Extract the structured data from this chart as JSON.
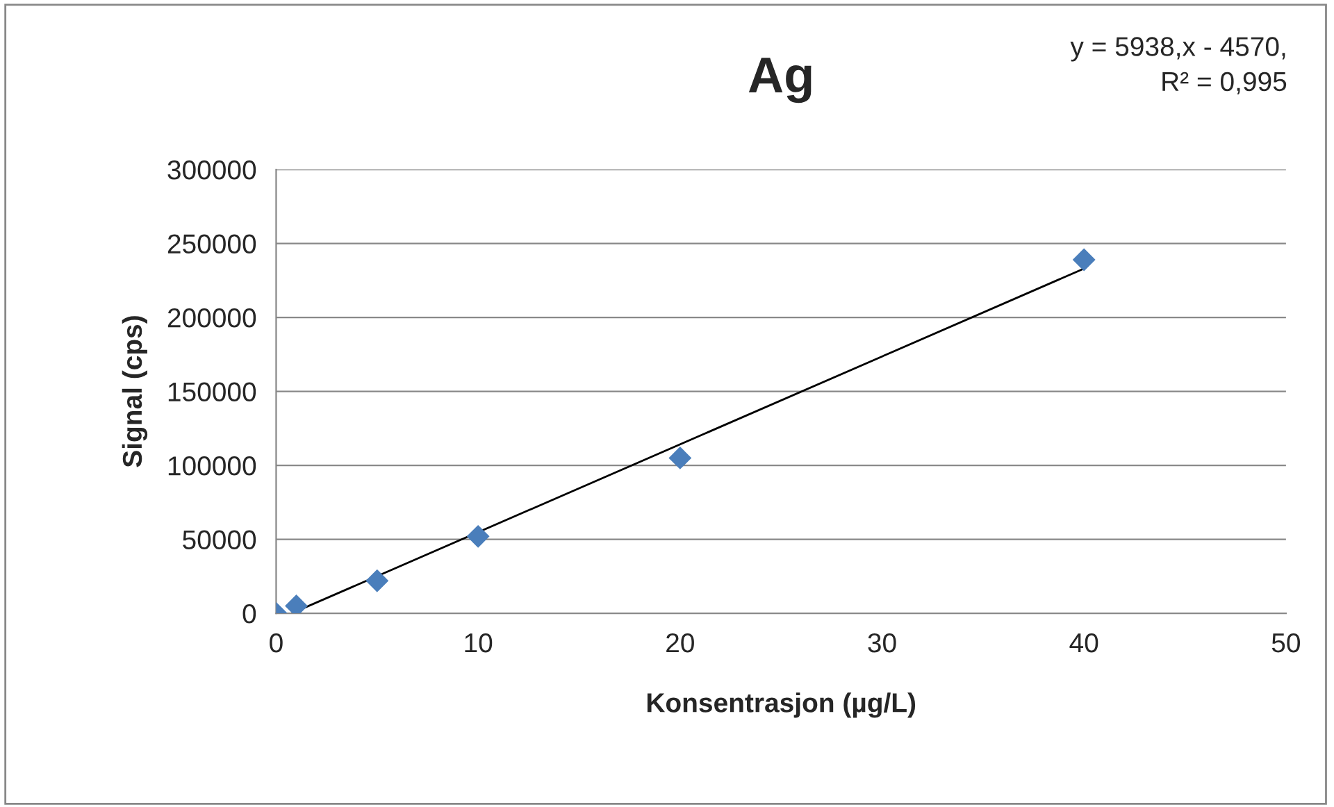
{
  "chart_data": {
    "type": "scatter",
    "title": "Ag",
    "xlabel": "Konsentrasjon (µg/L)",
    "ylabel": "Signal (cps)",
    "annotations": [
      "y = 5938,x - 4570,\nR² = 0,995"
    ],
    "series": [
      {
        "color": "#4a7ebb",
        "x": [
          0,
          1,
          5,
          10,
          20,
          40
        ],
        "values": [
          0,
          5000,
          22000,
          52000,
          105000,
          239000
        ],
        "marker": "diamond"
      },
      {
        "type": "line",
        "color": "#000000",
        "x": [
          0.77,
          40
        ],
        "values": [
          0,
          233000
        ],
        "marker": "none",
        "line_style": "solid"
      }
    ],
    "xlim": [
      0,
      50
    ],
    "xticks": [
      0,
      10,
      20,
      30,
      40,
      50
    ],
    "ylim": [
      0,
      300000
    ],
    "yticks": [
      0,
      50000,
      100000,
      150000,
      200000,
      250000,
      300000
    ],
    "grid": "y",
    "legend": false
  }
}
